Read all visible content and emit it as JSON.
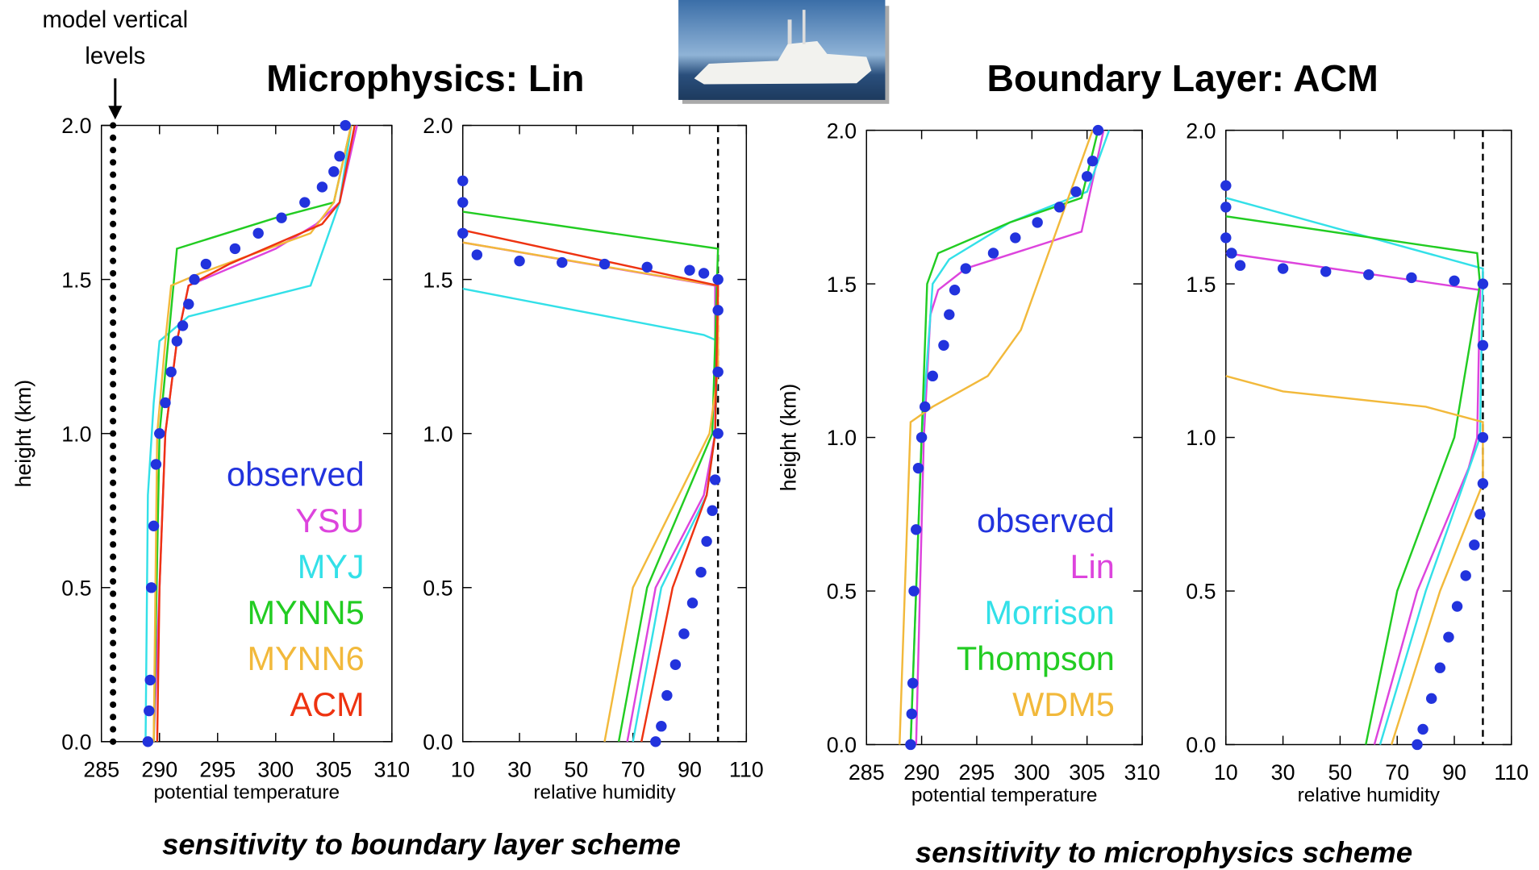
{
  "figure": {
    "titles": [
      "Microphysics: Lin",
      "Boundary Layer: ACM"
    ],
    "captions": [
      "sensitivity to boundary layer scheme",
      "sensitivity to microphysics scheme"
    ],
    "annotation": [
      "model vertical",
      "levels"
    ]
  },
  "chart_data": [
    {
      "type": "line",
      "xlabel": "potential temperature",
      "ylabel": "height (km)",
      "xlim": [
        285,
        310
      ],
      "xticks": [
        285,
        290,
        295,
        300,
        305,
        310
      ],
      "ylim": [
        0,
        2
      ],
      "yticks": [
        {
          "value": 0,
          "label": "0.0"
        },
        0.5,
        {
          "value": 1,
          "label": "1.0"
        },
        1.5,
        {
          "value": 2,
          "label": "2.0"
        }
      ],
      "legend": "lower right",
      "model_levels": {
        "color": "#000000",
        "x": 286,
        "y": [
          0.0,
          0.04,
          0.08,
          0.12,
          0.16,
          0.2,
          0.24,
          0.28,
          0.32,
          0.36,
          0.4,
          0.44,
          0.48,
          0.52,
          0.56,
          0.6,
          0.64,
          0.68,
          0.72,
          0.76,
          0.8,
          0.84,
          0.88,
          0.92,
          0.96,
          1.0,
          1.04,
          1.08,
          1.12,
          1.16,
          1.2,
          1.24,
          1.28,
          1.32,
          1.36,
          1.4,
          1.44,
          1.48,
          1.52,
          1.56,
          1.6,
          1.64,
          1.68,
          1.72,
          1.76,
          1.8,
          1.84,
          1.88,
          1.92,
          1.96,
          2.0
        ]
      },
      "series": [
        {
          "name": "observed",
          "color": "#2233dd",
          "marker": "dots",
          "x": [
            289.0,
            289.1,
            289.2,
            289.3,
            289.5,
            289.7,
            290.0,
            290.5,
            291.0,
            291.5,
            292.0,
            292.5,
            293.0,
            294.0,
            296.5,
            298.5,
            300.5,
            302.5,
            304.0,
            305.0,
            305.5,
            306.0
          ],
          "y": [
            0.0,
            0.1,
            0.2,
            0.5,
            0.7,
            0.9,
            1.0,
            1.1,
            1.2,
            1.3,
            1.35,
            1.42,
            1.5,
            1.55,
            1.6,
            1.65,
            1.7,
            1.75,
            1.8,
            1.85,
            1.9,
            2.0
          ]
        },
        {
          "name": "YSU",
          "color": "#dd44dd",
          "x": [
            289.5,
            290.5,
            291.5,
            292.5,
            300,
            303.5,
            305.5,
            307
          ],
          "y": [
            0,
            1.0,
            1.3,
            1.48,
            1.6,
            1.68,
            1.75,
            2.0
          ]
        },
        {
          "name": "MYJ",
          "color": "#33e0e8",
          "x": [
            288.8,
            289,
            289.5,
            290,
            292.5,
            303,
            305.5,
            306.5
          ],
          "y": [
            0,
            0.8,
            1.1,
            1.3,
            1.38,
            1.48,
            1.75,
            2.0
          ]
        },
        {
          "name": "MYNN5",
          "color": "#22cc22",
          "x": [
            289.5,
            290,
            291,
            291.5,
            300,
            305,
            306.5
          ],
          "y": [
            0,
            1.0,
            1.4,
            1.6,
            1.7,
            1.75,
            2.0
          ]
        },
        {
          "name": "MYNN6",
          "color": "#f2b93b",
          "x": [
            289.5,
            289.8,
            290.5,
            291,
            293.5,
            303,
            305,
            306.5
          ],
          "y": [
            0,
            1.0,
            1.3,
            1.48,
            1.52,
            1.65,
            1.75,
            2.0
          ]
        },
        {
          "name": "ACM",
          "color": "#ee3311",
          "x": [
            289.8,
            290,
            290.5,
            291.5,
            292.5,
            296,
            304,
            305.5,
            306.8
          ],
          "y": [
            0,
            0.5,
            1.0,
            1.3,
            1.48,
            1.55,
            1.68,
            1.75,
            2.0
          ]
        }
      ]
    },
    {
      "type": "line",
      "xlabel": "relative humidity",
      "xlim": [
        10,
        110
      ],
      "xticks": [
        10,
        30,
        50,
        70,
        90,
        110
      ],
      "ylim": [
        0,
        2
      ],
      "yticks": [
        {
          "value": 0,
          "label": "0.0"
        },
        0.5,
        {
          "value": 1,
          "label": "1.0"
        },
        1.5,
        {
          "value": 2,
          "label": "2.0"
        }
      ],
      "vline": 100,
      "series": [
        {
          "name": "observed",
          "color": "#2233dd",
          "marker": "dots",
          "x": [
            78,
            80,
            82,
            85,
            88,
            91,
            94,
            96,
            98,
            99,
            100,
            100,
            100,
            100,
            95,
            90,
            75,
            60,
            45,
            30,
            15,
            10,
            10,
            10
          ],
          "y": [
            0.0,
            0.05,
            0.15,
            0.25,
            0.35,
            0.45,
            0.55,
            0.65,
            0.75,
            0.85,
            1.0,
            1.2,
            1.4,
            1.5,
            1.52,
            1.53,
            1.54,
            1.55,
            1.555,
            1.56,
            1.58,
            1.65,
            1.75,
            1.82
          ]
        },
        {
          "name": "YSU",
          "color": "#dd44dd",
          "x": [
            68,
            78,
            95,
            99,
            99,
            10
          ],
          "y": [
            0,
            0.5,
            0.8,
            1.0,
            1.48,
            1.62
          ]
        },
        {
          "name": "MYJ",
          "color": "#33e0e8",
          "x": [
            70,
            80,
            96,
            99,
            100,
            95,
            10
          ],
          "y": [
            0,
            0.5,
            0.8,
            1.0,
            1.3,
            1.32,
            1.47
          ]
        },
        {
          "name": "MYNN5",
          "color": "#22cc22",
          "x": [
            65,
            75,
            98,
            100,
            10
          ],
          "y": [
            0,
            0.5,
            1.0,
            1.6,
            1.72
          ]
        },
        {
          "name": "MYNN6",
          "color": "#f2b93b",
          "x": [
            60,
            70,
            97,
            100,
            100,
            10
          ],
          "y": [
            0,
            0.5,
            1.0,
            1.2,
            1.48,
            1.62
          ]
        },
        {
          "name": "ACM",
          "color": "#ee3311",
          "x": [
            73,
            84,
            96,
            99,
            100,
            10
          ],
          "y": [
            0,
            0.5,
            0.8,
            1.0,
            1.48,
            1.66
          ]
        }
      ]
    },
    {
      "type": "line",
      "xlabel": "potential temperature",
      "ylabel": "height (km)",
      "xlim": [
        285,
        310
      ],
      "xticks": [
        285,
        290,
        295,
        300,
        305,
        310
      ],
      "ylim": [
        0,
        2
      ],
      "yticks": [
        {
          "value": 0,
          "label": "0.0"
        },
        0.5,
        {
          "value": 1,
          "label": "1.0"
        },
        1.5,
        {
          "value": 2,
          "label": "2.0"
        }
      ],
      "legend": "lower right",
      "series": [
        {
          "name": "observed",
          "color": "#2233dd",
          "marker": "dots",
          "x": [
            289.0,
            289.1,
            289.2,
            289.3,
            289.5,
            289.7,
            290.0,
            290.3,
            291.0,
            292.0,
            292.5,
            293.0,
            294.0,
            296.5,
            298.5,
            300.5,
            302.5,
            304.0,
            305.0,
            305.5,
            306.0
          ],
          "y": [
            0.0,
            0.1,
            0.2,
            0.5,
            0.7,
            0.9,
            1.0,
            1.1,
            1.2,
            1.3,
            1.4,
            1.48,
            1.55,
            1.6,
            1.65,
            1.7,
            1.75,
            1.8,
            1.85,
            1.9,
            2.0
          ]
        },
        {
          "name": "Lin",
          "color": "#dd44dd",
          "x": [
            289.5,
            290.2,
            290.8,
            291.5,
            294,
            304.5,
            306.5
          ],
          "y": [
            0,
            1.0,
            1.4,
            1.48,
            1.55,
            1.67,
            2.0
          ]
        },
        {
          "name": "Morrison",
          "color": "#33e0e8",
          "x": [
            289,
            290,
            291,
            292.5,
            298,
            305,
            307
          ],
          "y": [
            0,
            1.0,
            1.5,
            1.58,
            1.7,
            1.8,
            2.0
          ]
        },
        {
          "name": "Thompson",
          "color": "#22cc22",
          "x": [
            289,
            290,
            290.5,
            291.5,
            298,
            304.5,
            306
          ],
          "y": [
            0,
            1.0,
            1.5,
            1.6,
            1.7,
            1.78,
            2.0
          ]
        },
        {
          "name": "WDM5",
          "color": "#f2b93b",
          "x": [
            288,
            289,
            291,
            296,
            299,
            301.5,
            303.5,
            305.5
          ],
          "y": [
            0,
            1.05,
            1.1,
            1.2,
            1.35,
            1.6,
            1.8,
            2.0
          ]
        }
      ]
    },
    {
      "type": "line",
      "xlabel": "relative humidity",
      "xlim": [
        10,
        110
      ],
      "xticks": [
        10,
        30,
        50,
        70,
        90,
        110
      ],
      "ylim": [
        0,
        2
      ],
      "yticks": [
        {
          "value": 0,
          "label": "0.0"
        },
        0.5,
        {
          "value": 1,
          "label": "1.0"
        },
        1.5,
        {
          "value": 2,
          "label": "2.0"
        }
      ],
      "vline": 100,
      "series": [
        {
          "name": "observed",
          "color": "#2233dd",
          "marker": "dots",
          "x": [
            77,
            79,
            82,
            85,
            88,
            91,
            94,
            97,
            99,
            100,
            100,
            100,
            100,
            90,
            75,
            60,
            45,
            30,
            15,
            12,
            10,
            10,
            10
          ],
          "y": [
            0.0,
            0.05,
            0.15,
            0.25,
            0.35,
            0.45,
            0.55,
            0.65,
            0.75,
            0.85,
            1.0,
            1.3,
            1.5,
            1.51,
            1.52,
            1.53,
            1.54,
            1.55,
            1.56,
            1.6,
            1.65,
            1.75,
            1.82
          ]
        },
        {
          "name": "Lin",
          "color": "#dd44dd",
          "x": [
            62,
            77,
            95,
            98,
            99,
            10
          ],
          "y": [
            0,
            0.5,
            0.9,
            1.0,
            1.48,
            1.6
          ]
        },
        {
          "name": "Morrison",
          "color": "#33e0e8",
          "x": [
            64,
            80,
            99,
            100,
            10
          ],
          "y": [
            0,
            0.5,
            1.0,
            1.55,
            1.78
          ]
        },
        {
          "name": "Thompson",
          "color": "#22cc22",
          "x": [
            59,
            70,
            90,
            99,
            98,
            10
          ],
          "y": [
            0,
            0.5,
            1.0,
            1.5,
            1.6,
            1.72
          ]
        },
        {
          "name": "WDM5",
          "color": "#f2b93b",
          "x": [
            68,
            85,
            100,
            100,
            80,
            30,
            10
          ],
          "y": [
            0,
            0.5,
            0.85,
            1.05,
            1.1,
            1.15,
            1.2
          ]
        }
      ]
    }
  ]
}
